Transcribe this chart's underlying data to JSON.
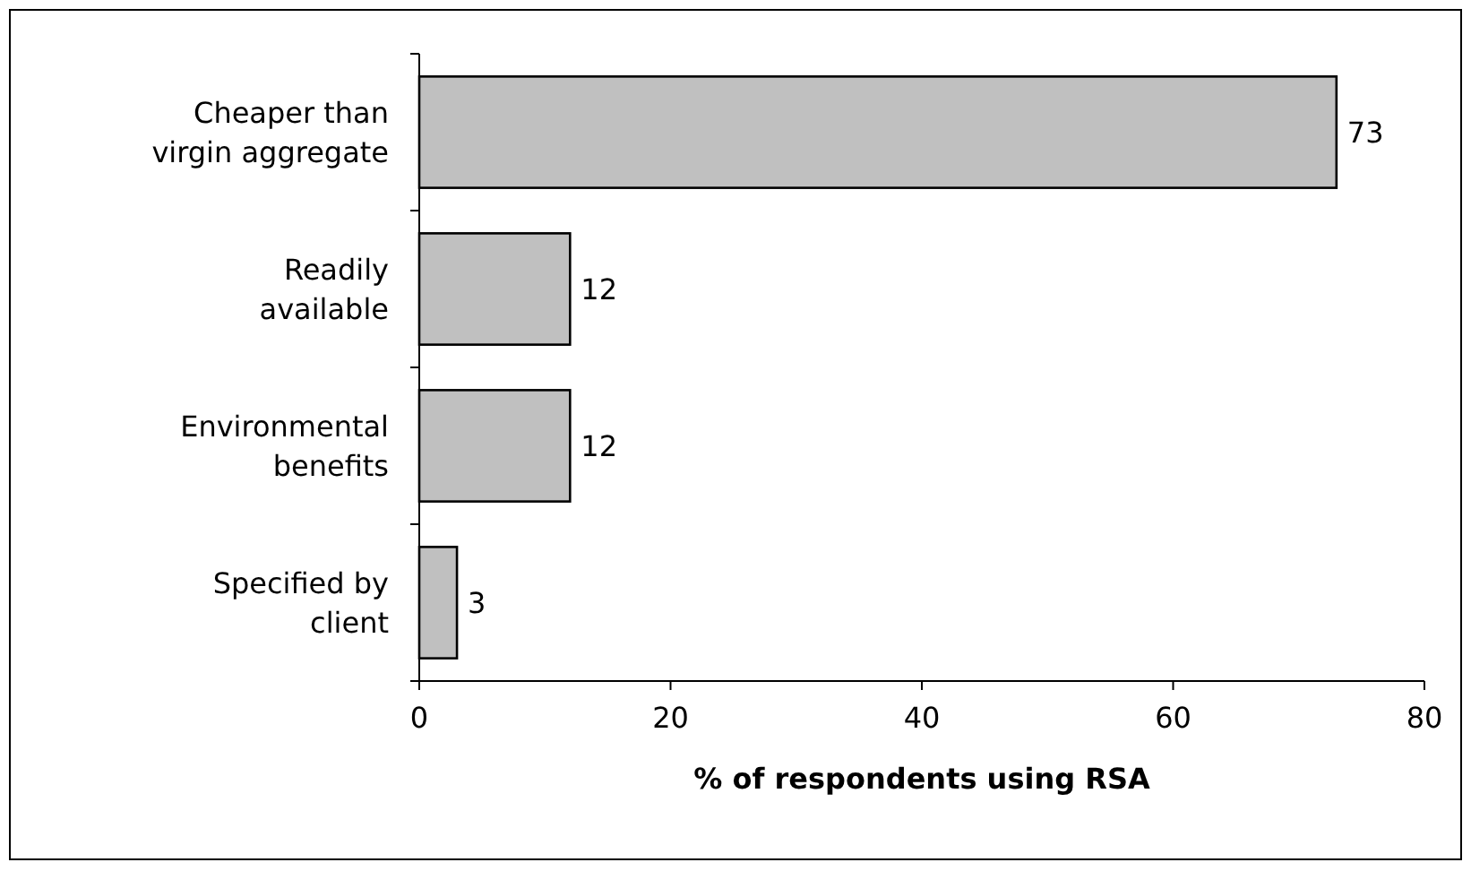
{
  "chart_data": {
    "type": "bar",
    "orientation": "horizontal",
    "xlabel": "% of respondents using RSA",
    "categories": [
      "Cheaper than virgin aggregate",
      "Readily available",
      "Environmental benefits",
      "Specified by client"
    ],
    "values": [
      73,
      12,
      12,
      3
    ],
    "color": "#c0c0c0",
    "data_labels": true,
    "xlim": [
      0,
      80
    ],
    "xticks": [
      0,
      20,
      40,
      60,
      80
    ],
    "grid": false
  }
}
